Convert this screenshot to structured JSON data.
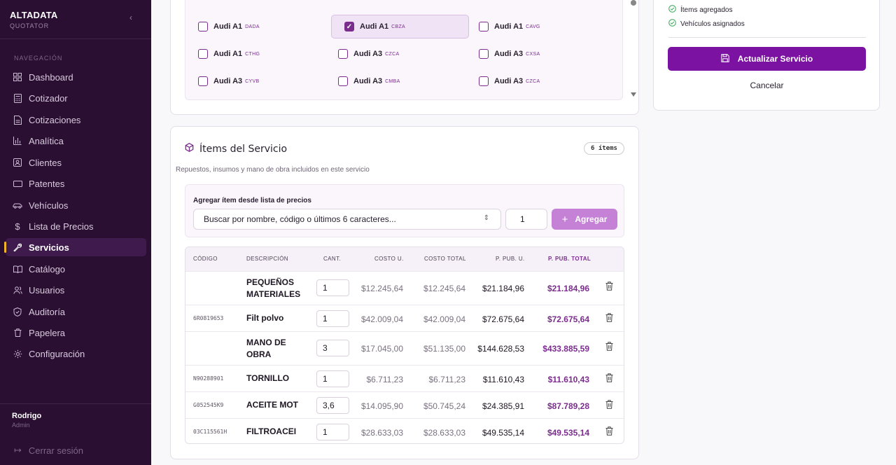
{
  "sidebar": {
    "brand": "ALTADATA",
    "brand_sub": "QUOTATOR",
    "collapse_icon": "chevron-left-icon",
    "nav_title": "NAVEGACIÓN",
    "items": [
      {
        "label": "Dashboard",
        "icon": "grid-icon"
      },
      {
        "label": "Cotizador",
        "icon": "calculator-icon"
      },
      {
        "label": "Cotizaciones",
        "icon": "document-icon"
      },
      {
        "label": "Analítica",
        "icon": "bar-chart-icon"
      },
      {
        "label": "Clientes",
        "icon": "contact-icon"
      },
      {
        "label": "Patentes",
        "icon": "plate-icon"
      },
      {
        "label": "Vehículos",
        "icon": "car-icon"
      },
      {
        "label": "Lista de Precios",
        "icon": "dollar-icon"
      },
      {
        "label": "Servicios",
        "icon": "wrench-icon",
        "active": true
      },
      {
        "label": "Catálogo",
        "icon": "book-icon"
      },
      {
        "label": "Usuarios",
        "icon": "users-icon"
      },
      {
        "label": "Auditoría",
        "icon": "shield-icon"
      },
      {
        "label": "Papelera",
        "icon": "trash-icon"
      },
      {
        "label": "Configuración",
        "icon": "gear-icon"
      }
    ],
    "user_name": "Rodrigo",
    "user_role": "Admin",
    "logout": "Cerrar sesión"
  },
  "models": [
    {
      "name": "Audi A1",
      "code": "DADA",
      "checked": false
    },
    {
      "name": "Audi A1",
      "code": "CBZA",
      "checked": true
    },
    {
      "name": "Audi A1",
      "code": "CAVG",
      "checked": false
    },
    {
      "name": "Audi A1",
      "code": "CTHG",
      "checked": false
    },
    {
      "name": "Audi A3",
      "code": "CZCA",
      "checked": false
    },
    {
      "name": "Audi A3",
      "code": "CXSA",
      "checked": false
    },
    {
      "name": "Audi A3",
      "code": "CYVB",
      "checked": false
    },
    {
      "name": "Audi A3",
      "code": "CMBA",
      "checked": false
    },
    {
      "name": "Audi A3",
      "code": "CZCA",
      "checked": false
    }
  ],
  "items_section": {
    "title": "Ítems del Servicio",
    "badge": "6 ítems",
    "subtitle": "Repuestos, insumos y mano de obra incluidos en este servicio",
    "add_label": "Agregar ítem desde lista de precios",
    "search_placeholder": "Buscar por nombre, código o últimos 6 caracteres...",
    "qty_value": "1",
    "add_button": "Agregar"
  },
  "table": {
    "headers": [
      "CÓDIGO",
      "DESCRIPCIÓN",
      "CANT.",
      "COSTO U.",
      "COSTO TOTAL",
      "P. PUB. U.",
      "P. PUB. TOTAL"
    ],
    "rows": [
      {
        "code": "",
        "desc": "PEQUEÑOS MATERIALES",
        "qty": "1",
        "cost_u": "$12.245,64",
        "cost_total": "$12.245,64",
        "pub_u": "$21.184,96",
        "pub_total": "$21.184,96"
      },
      {
        "code": "6R0819653",
        "desc": "Filt polvo",
        "qty": "1",
        "cost_u": "$42.009,04",
        "cost_total": "$42.009,04",
        "pub_u": "$72.675,64",
        "pub_total": "$72.675,64"
      },
      {
        "code": "",
        "desc": "MANO DE OBRA",
        "qty": "3",
        "cost_u": "$17.045,00",
        "cost_total": "$51.135,00",
        "pub_u": "$144.628,53",
        "pub_total": "$433.885,59"
      },
      {
        "code": "N90288901",
        "desc": "TORNILLO",
        "qty": "1",
        "cost_u": "$6.711,23",
        "cost_total": "$6.711,23",
        "pub_u": "$11.610,43",
        "pub_total": "$11.610,43"
      },
      {
        "code": "G052545K9",
        "desc": "ACEITE MOT",
        "qty": "3,6",
        "cost_u": "$14.095,90",
        "cost_total": "$50.745,24",
        "pub_u": "$24.385,91",
        "pub_total": "$87.789,28"
      },
      {
        "code": "03C115561H",
        "desc": "FILTROACEI",
        "qty": "1",
        "cost_u": "$28.633,03",
        "cost_total": "$28.633,03",
        "pub_u": "$49.535,14",
        "pub_total": "$49.535,14"
      }
    ]
  },
  "summary": {
    "checks": [
      "Ítems agregados",
      "Vehículos asignados"
    ],
    "update_button": "Actualizar Servicio",
    "cancel": "Cancelar"
  }
}
